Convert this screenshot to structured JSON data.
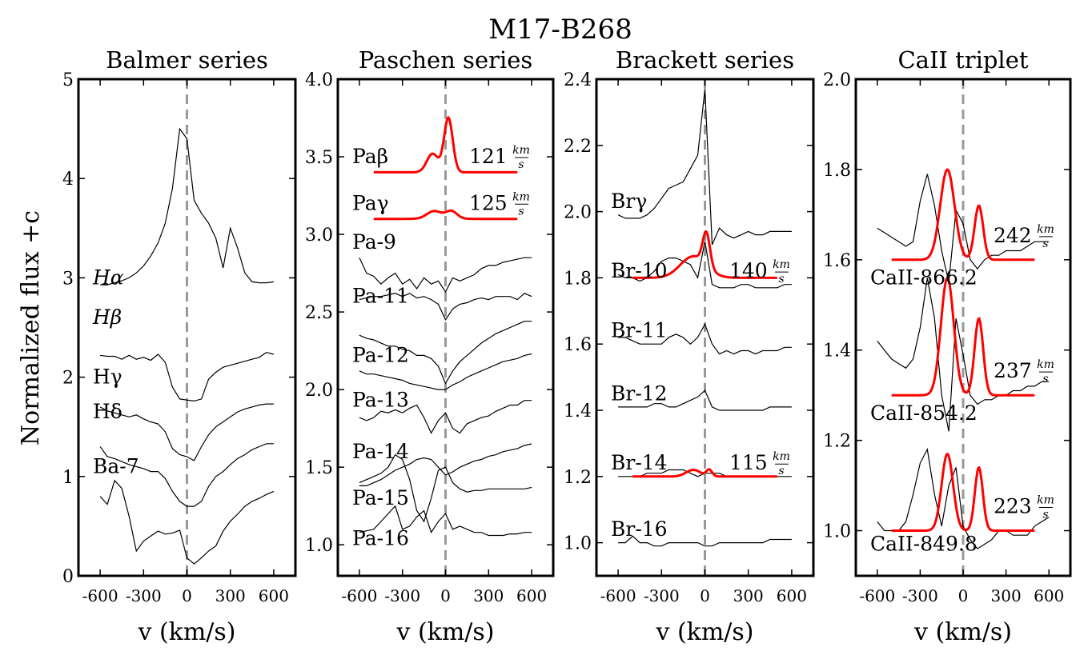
{
  "figure": {
    "title": "M17-B268",
    "ylabel": "Normalized flux +c",
    "colors": {
      "spectrum": "#000000",
      "fit": "#ff0000",
      "zero_line": "#999999"
    }
  },
  "chart_data": [
    {
      "type": "line",
      "title": "Balmer series",
      "xlabel": "v (km/s)",
      "xlim": [
        -750,
        750
      ],
      "ylim": [
        0,
        5
      ],
      "xticks": [
        -600,
        -300,
        0,
        300,
        600
      ],
      "xtick_labels": [
        "-600",
        "-300",
        "0",
        "300",
        "600"
      ],
      "yticks": [
        0,
        1,
        2,
        3,
        4,
        5
      ],
      "ytick_labels": [
        "0",
        "1",
        "2",
        "3",
        "4",
        "5"
      ],
      "zero_line": 0,
      "lines": [
        {
          "name": "Hα",
          "label_y": 3.0,
          "y": [
            2.93,
            2.93,
            2.95,
            2.97,
            3.0,
            3.05,
            3.12,
            3.22,
            3.35,
            3.55,
            3.9,
            4.5,
            4.4,
            3.78,
            3.65,
            3.55,
            3.4,
            3.1,
            3.5,
            3.3,
            3.05,
            2.96,
            2.95,
            2.95,
            2.96
          ]
        },
        {
          "name": "Hβ",
          "label_y": 2.6,
          "y": []
        },
        {
          "name": "Hγ",
          "label_y": 2.0,
          "y": [
            2.22,
            2.21,
            2.21,
            2.18,
            2.22,
            2.18,
            2.2,
            2.17,
            2.23,
            2.15,
            1.9,
            1.78,
            1.77,
            1.76,
            1.78,
            1.98,
            2.05,
            2.1,
            2.12,
            2.14,
            2.16,
            2.18,
            2.2,
            2.25,
            2.23
          ]
        },
        {
          "name": "Hδ",
          "label_y": 1.65,
          "y": [
            1.7,
            1.66,
            1.64,
            1.62,
            1.6,
            1.62,
            1.58,
            1.55,
            1.53,
            1.45,
            1.28,
            1.22,
            1.2,
            1.16,
            1.3,
            1.42,
            1.5,
            1.55,
            1.6,
            1.65,
            1.68,
            1.7,
            1.72,
            1.73,
            1.73
          ]
        },
        {
          "name": "Ba-7",
          "label_y": 1.1,
          "y": [
            1.3,
            1.2,
            1.18,
            1.15,
            1.12,
            1.1,
            1.08,
            1.05,
            1.05,
            0.98,
            0.85,
            0.75,
            0.7,
            0.7,
            0.75,
            0.9,
            1.0,
            1.05,
            1.12,
            1.18,
            1.22,
            1.27,
            1.3,
            1.33,
            1.33
          ]
        },
        {
          "name": "",
          "label_y": 0.5,
          "y": [
            0.8,
            0.72,
            0.96,
            0.88,
            0.6,
            0.25,
            0.35,
            0.4,
            0.45,
            0.42,
            0.43,
            0.46,
            0.18,
            0.12,
            0.18,
            0.25,
            0.3,
            0.45,
            0.55,
            0.62,
            0.7,
            0.75,
            0.78,
            0.82,
            0.85
          ]
        }
      ],
      "fits": []
    },
    {
      "type": "line",
      "title": "Paschen series",
      "xlabel": "v (km/s)",
      "xlim": [
        -750,
        750
      ],
      "ylim": [
        0.8,
        4.0
      ],
      "xticks": [
        -600,
        -300,
        0,
        300,
        600
      ],
      "xtick_labels": [
        "-600",
        "-300",
        "0",
        "300",
        "600"
      ],
      "yticks": [
        1.0,
        1.5,
        2.0,
        2.5,
        3.0,
        3.5,
        4.0
      ],
      "ytick_labels": [
        "1.0",
        "1.5",
        "2.0",
        "2.5",
        "3.0",
        "3.5",
        "4.0"
      ],
      "zero_line": 0,
      "lines": [
        {
          "name": "Paβ",
          "label_y": 3.5,
          "y": []
        },
        {
          "name": "Paγ",
          "label_y": 3.2,
          "y": []
        },
        {
          "name": "Pa-9",
          "label_y": 2.95,
          "y": [
            2.85,
            2.75,
            2.73,
            2.68,
            2.72,
            2.75,
            2.68,
            2.71,
            2.65,
            2.72,
            2.68,
            2.7,
            2.63,
            2.72,
            2.7,
            2.72,
            2.74,
            2.78,
            2.8,
            2.8,
            2.82,
            2.83,
            2.84,
            2.85,
            2.85
          ]
        },
        {
          "name": "Pa-11",
          "label_y": 2.6,
          "y": [
            2.58,
            2.59,
            2.6,
            2.6,
            2.61,
            2.62,
            2.6,
            2.62,
            2.59,
            2.6,
            2.58,
            2.55,
            2.45,
            2.52,
            2.55,
            2.56,
            2.58,
            2.59,
            2.58,
            2.6,
            2.6,
            2.6,
            2.58,
            2.62,
            2.6
          ]
        },
        {
          "name": "Pa-12",
          "label_y": 2.22,
          "y": [
            2.35,
            2.33,
            2.32,
            2.3,
            2.28,
            2.28,
            2.26,
            2.25,
            2.22,
            2.22,
            2.2,
            2.15,
            2.04,
            2.12,
            2.18,
            2.22,
            2.26,
            2.3,
            2.33,
            2.36,
            2.38,
            2.4,
            2.42,
            2.44,
            2.44
          ]
        },
        {
          "name": "Pa-13",
          "label_y": 1.93,
          "y": [
            2.12,
            2.1,
            2.1,
            2.09,
            2.08,
            2.07,
            2.06,
            2.04,
            2.03,
            2.02,
            2.01,
            2.0,
            2.0,
            2.03,
            2.05,
            2.08,
            2.1,
            2.12,
            2.14,
            2.16,
            2.18,
            2.19,
            2.2,
            2.22,
            2.23
          ]
        },
        {
          "name": "Pa-14",
          "label_y": 1.6,
          "y": [
            1.82,
            1.8,
            1.82,
            1.86,
            1.85,
            1.87,
            1.85,
            1.88,
            1.9,
            1.82,
            1.72,
            1.8,
            1.85,
            1.75,
            1.72,
            1.78,
            1.8,
            1.82,
            1.83,
            1.86,
            1.88,
            1.9,
            1.9,
            1.93,
            1.93
          ]
        },
        {
          "name": "Pa-15",
          "label_y": 1.3,
          "y": [
            1.38,
            1.38,
            1.4,
            1.42,
            1.45,
            1.48,
            1.5,
            1.52,
            1.55,
            1.56,
            1.55,
            1.5,
            1.45,
            1.47,
            1.5,
            1.52,
            1.54,
            1.55,
            1.57,
            1.58,
            1.6,
            1.61,
            1.62,
            1.64,
            1.65
          ]
        },
        {
          "name": "",
          "label_y": 1.4,
          "y": [
            1.4,
            1.42,
            1.44,
            1.46,
            1.5,
            1.58,
            1.55,
            1.42,
            1.22,
            1.15,
            1.3,
            1.48,
            1.5,
            1.4,
            1.36,
            1.34,
            1.35,
            1.35,
            1.36,
            1.36,
            1.36,
            1.36,
            1.36,
            1.36,
            1.37
          ]
        },
        {
          "name": "Pa-16",
          "label_y": 1.04,
          "y": [
            1.08,
            1.09,
            1.1,
            1.15,
            1.2,
            1.25,
            1.1,
            1.12,
            1.18,
            1.22,
            1.08,
            1.15,
            1.2,
            1.1,
            1.12,
            1.1,
            1.08,
            1.08,
            1.06,
            1.06,
            1.06,
            1.07,
            1.07,
            1.08,
            1.08
          ]
        }
      ],
      "fits": [
        {
          "name": "Paβ",
          "value": "121",
          "unit_num": "km",
          "unit_den": "s",
          "base": 3.4,
          "peaks": [
            [
              -90,
              0.12,
              40
            ],
            [
              20,
              0.35,
              30
            ]
          ]
        },
        {
          "name": "Paγ",
          "value": "125",
          "unit_num": "km",
          "unit_den": "s",
          "base": 3.1,
          "peaks": [
            [
              -80,
              0.05,
              50
            ],
            [
              40,
              0.05,
              40
            ]
          ]
        }
      ]
    },
    {
      "type": "line",
      "title": "Brackett series",
      "xlabel": "v (km/s)",
      "xlim": [
        -750,
        750
      ],
      "ylim": [
        0.9,
        2.4
      ],
      "xticks": [
        -600,
        -300,
        0,
        300,
        600
      ],
      "xtick_labels": [
        "-600",
        "-300",
        "0",
        "300",
        "600"
      ],
      "yticks": [
        1.0,
        1.2,
        1.4,
        1.6,
        1.8,
        2.0,
        2.2,
        2.4
      ],
      "ytick_labels": [
        "1.0",
        "1.2",
        "1.4",
        "1.6",
        "1.8",
        "2.0",
        "2.2",
        "2.4"
      ],
      "zero_line": 0,
      "lines": [
        {
          "name": "Brγ",
          "label_y": 2.03,
          "y": [
            1.99,
            1.98,
            1.98,
            1.98,
            1.99,
            2.01,
            2.04,
            2.07,
            2.08,
            2.09,
            2.13,
            2.17,
            2.37,
            1.9,
            1.95,
            1.93,
            1.92,
            1.93,
            1.94,
            1.93,
            1.93,
            1.94,
            1.94,
            1.94,
            1.94
          ]
        },
        {
          "name": "Br-10",
          "label_y": 1.82,
          "y": [
            1.81,
            1.8,
            1.8,
            1.79,
            1.8,
            1.82,
            1.85,
            1.86,
            1.86,
            1.85,
            1.84,
            1.8,
            1.91,
            1.78,
            1.77,
            1.77,
            1.77,
            1.78,
            1.78,
            1.77,
            1.77,
            1.77,
            1.77,
            1.78,
            1.78
          ]
        },
        {
          "name": "Br-11",
          "label_y": 1.64,
          "y": [
            1.62,
            1.62,
            1.61,
            1.6,
            1.6,
            1.6,
            1.6,
            1.62,
            1.63,
            1.62,
            1.6,
            1.62,
            1.66,
            1.6,
            1.57,
            1.58,
            1.57,
            1.58,
            1.58,
            1.57,
            1.58,
            1.58,
            1.58,
            1.59,
            1.59
          ]
        },
        {
          "name": "Br-12",
          "label_y": 1.45,
          "y": [
            1.41,
            1.41,
            1.41,
            1.41,
            1.41,
            1.42,
            1.42,
            1.41,
            1.41,
            1.42,
            1.43,
            1.44,
            1.46,
            1.41,
            1.4,
            1.4,
            1.4,
            1.4,
            1.4,
            1.4,
            1.4,
            1.41,
            1.41,
            1.41,
            1.41
          ]
        },
        {
          "name": "Br-14",
          "label_y": 1.24,
          "y": [
            1.2,
            1.2,
            1.2,
            1.2,
            1.21,
            1.21,
            1.21,
            1.22,
            1.22,
            1.22,
            1.21,
            1.2,
            1.21,
            1.21,
            1.21,
            1.2,
            1.2,
            1.2,
            1.2,
            1.2,
            1.2,
            1.2,
            1.2,
            1.2,
            1.2
          ]
        },
        {
          "name": "Br-16",
          "label_y": 1.04,
          "y": [
            1.0,
            1.0,
            1.02,
            1.0,
            1.0,
            0.99,
            0.99,
            1.0,
            1.0,
            1.0,
            1.0,
            1.0,
            0.99,
            0.99,
            1.0,
            1.0,
            1.0,
            1.0,
            1.0,
            1.0,
            1.0,
            1.01,
            1.01,
            1.01,
            1.01
          ]
        }
      ],
      "fits": [
        {
          "name": "Br-10",
          "value": "140",
          "unit_num": "km",
          "unit_den": "s",
          "base": 1.8,
          "peaks": [
            [
              -80,
              0.065,
              90
            ],
            [
              10,
              0.1,
              25
            ]
          ]
        },
        {
          "name": "Br-14",
          "value": "115",
          "unit_num": "km",
          "unit_den": "s",
          "base": 1.2,
          "peaks": [
            [
              -80,
              0.02,
              50
            ],
            [
              30,
              0.02,
              20
            ]
          ]
        }
      ]
    },
    {
      "type": "line",
      "title": "CaII triplet",
      "xlabel": "v (km/s)",
      "xlim": [
        -750,
        750
      ],
      "ylim": [
        0.9,
        2.0
      ],
      "xticks": [
        -600,
        -300,
        0,
        300,
        600
      ],
      "xtick_labels": [
        "-600",
        "-300",
        "0",
        "300",
        "600"
      ],
      "yticks": [
        1.0,
        1.2,
        1.4,
        1.6,
        1.8,
        2.0
      ],
      "ytick_labels": [
        "1.0",
        "1.2",
        "1.4",
        "1.6",
        "1.8",
        "2.0"
      ],
      "zero_line": 0,
      "lines": [
        {
          "name": "CaII-866.2",
          "label_y": 1.56,
          "y": [
            1.67,
            1.66,
            1.65,
            1.64,
            1.63,
            1.64,
            1.73,
            1.79,
            1.72,
            1.62,
            1.55,
            1.71,
            1.68,
            1.6,
            1.58,
            1.6,
            1.61,
            1.61,
            1.62,
            1.62,
            1.62,
            1.63,
            1.64,
            1.64,
            1.64
          ]
        },
        {
          "name": "CaII-854.2",
          "label_y": 1.26,
          "y": [
            1.42,
            1.4,
            1.38,
            1.37,
            1.36,
            1.38,
            1.45,
            1.56,
            1.47,
            1.3,
            1.22,
            1.47,
            1.39,
            1.3,
            1.28,
            1.29,
            1.29,
            1.3,
            1.3,
            1.31,
            1.31,
            1.32,
            1.32,
            1.33,
            1.33
          ]
        },
        {
          "name": "CaII-849.8",
          "label_y": 0.97,
          "y": [
            1.02,
            1.0,
            1.0,
            1.0,
            1.02,
            1.08,
            1.15,
            1.18,
            1.08,
            1.01,
            1.1,
            1.14,
            1.01,
            0.98,
            0.96,
            0.97,
            0.98,
            1.0,
            1.0,
            0.99,
            0.99,
            0.99,
            1.01,
            1.02,
            1.03
          ]
        }
      ],
      "fits": [
        {
          "name": "CaII-866.2",
          "value": "242",
          "unit_num": "km",
          "unit_den": "s",
          "base": 1.6,
          "peaks": [
            [
              -110,
              0.2,
              50
            ],
            [
              110,
              0.12,
              30
            ]
          ]
        },
        {
          "name": "CaII-854.2",
          "value": "237",
          "unit_num": "km",
          "unit_den": "s",
          "base": 1.3,
          "peaks": [
            [
              -110,
              0.26,
              45
            ],
            [
              110,
              0.17,
              30
            ]
          ]
        },
        {
          "name": "CaII-849.8",
          "value": "223",
          "unit_num": "km",
          "unit_den": "s",
          "base": 1.0,
          "peaks": [
            [
              -110,
              0.17,
              40
            ],
            [
              110,
              0.14,
              28
            ]
          ]
        }
      ]
    }
  ]
}
